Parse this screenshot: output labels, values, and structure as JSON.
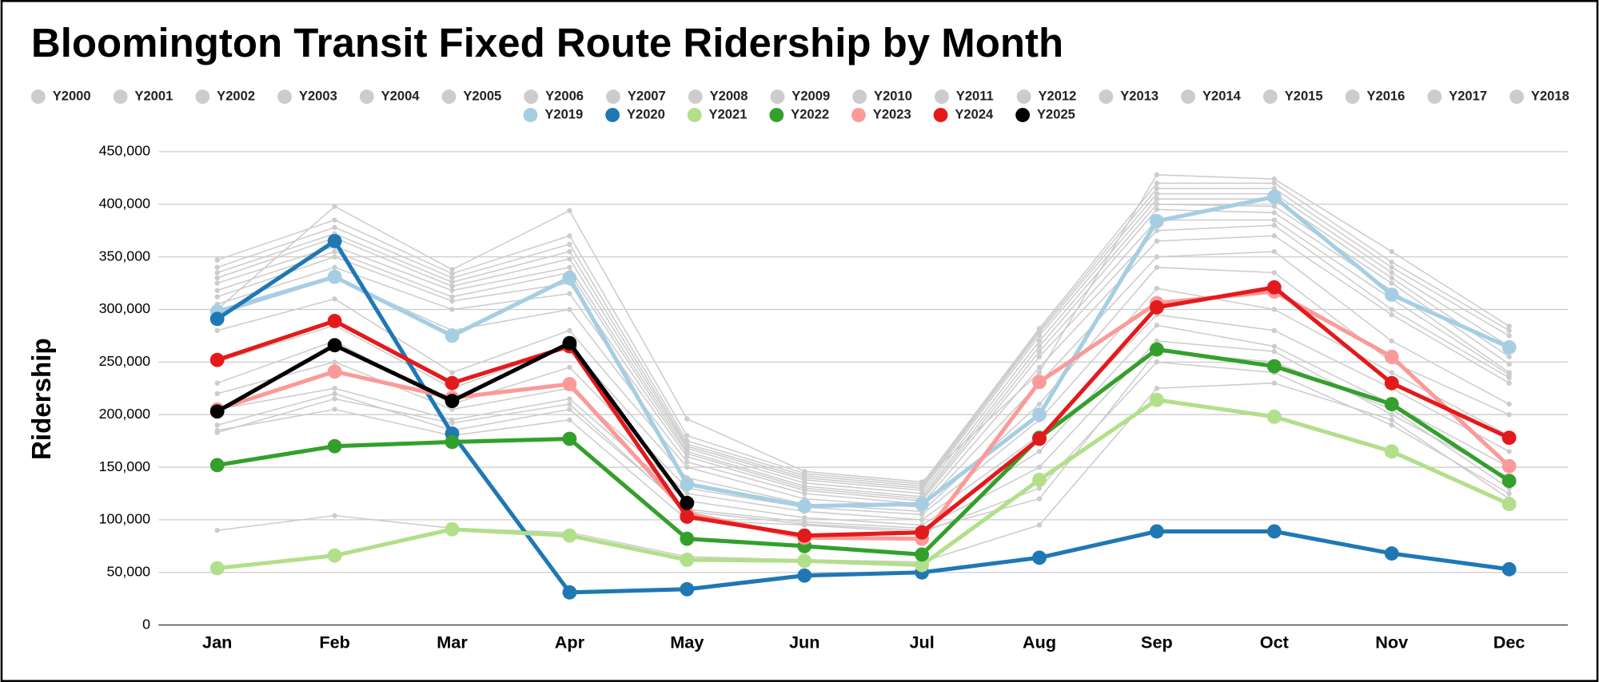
{
  "chart_data": {
    "type": "line",
    "title": "Bloomington Transit Fixed Route Ridership by Month",
    "y_label": "Ridership",
    "categories": [
      "Jan",
      "Feb",
      "Mar",
      "Apr",
      "May",
      "Jun",
      "Jul",
      "Aug",
      "Sep",
      "Oct",
      "Nov",
      "Dec"
    ],
    "ylim": [
      0,
      450000
    ],
    "yticks": [
      0,
      {
        "value": 50000,
        "label": "50,000"
      },
      {
        "value": 100000,
        "label": "100,000"
      },
      {
        "value": 150000,
        "label": "150,000"
      },
      {
        "value": 200000,
        "label": "200,000"
      },
      {
        "value": 250000,
        "label": "250,000"
      },
      {
        "value": 300000,
        "label": "300,000"
      },
      {
        "value": 350000,
        "label": "350,000"
      },
      {
        "value": 400000,
        "label": "400,000"
      },
      {
        "value": 450000,
        "label": "450,000"
      }
    ],
    "grid": true,
    "legend": "top",
    "series": [
      {
        "name": "Y2000",
        "color": "#cccccc",
        "values": [
          90000,
          104000,
          92000,
          88000,
          65000,
          62000,
          60000,
          95000,
          225000,
          230000,
          195000,
          120000
        ]
      },
      {
        "name": "Y2001",
        "color": "#cccccc",
        "values": [
          185000,
          205000,
          180000,
          195000,
          100000,
          95000,
          88000,
          130000,
          250000,
          240000,
          190000,
          125000
        ]
      },
      {
        "name": "Y2002",
        "color": "#cccccc",
        "values": [
          190000,
          220000,
          185000,
          205000,
          110000,
          98000,
          92000,
          150000,
          270000,
          260000,
          200000,
          140000
        ]
      },
      {
        "name": "Y2003",
        "color": "#cccccc",
        "values": [
          205000,
          225000,
          195000,
          215000,
          118000,
          102000,
          95000,
          165000,
          285000,
          265000,
          210000,
          150000
        ]
      },
      {
        "name": "Y2004",
        "color": "#cccccc",
        "values": [
          220000,
          250000,
          205000,
          225000,
          125000,
          108000,
          100000,
          180000,
          295000,
          280000,
          225000,
          165000
        ]
      },
      {
        "name": "Y2005",
        "color": "#cccccc",
        "values": [
          230000,
          270000,
          210000,
          245000,
          130000,
          112000,
          105000,
          195000,
          320000,
          300000,
          240000,
          180000
        ]
      },
      {
        "name": "Y2006",
        "color": "#cccccc",
        "values": [
          250000,
          285000,
          225000,
          265000,
          140000,
          115000,
          108000,
          210000,
          340000,
          335000,
          250000,
          200000
        ]
      },
      {
        "name": "Y2007",
        "color": "#cccccc",
        "values": [
          280000,
          310000,
          240000,
          280000,
          150000,
          120000,
          112000,
          230000,
          350000,
          355000,
          270000,
          210000
        ]
      },
      {
        "name": "Y2008",
        "color": "#cccccc",
        "values": [
          295000,
          330000,
          280000,
          300000,
          155000,
          125000,
          115000,
          245000,
          365000,
          370000,
          295000,
          230000
        ]
      },
      {
        "name": "Y2009",
        "color": "#cccccc",
        "values": [
          305000,
          340000,
          300000,
          315000,
          160000,
          128000,
          118000,
          255000,
          375000,
          380000,
          300000,
          235000
        ]
      },
      {
        "name": "Y2010",
        "color": "#cccccc",
        "values": [
          312000,
          350000,
          308000,
          325000,
          163000,
          130000,
          120000,
          260000,
          385000,
          385000,
          310000,
          238000
        ]
      },
      {
        "name": "Y2011",
        "color": "#cccccc",
        "values": [
          318000,
          355000,
          312000,
          335000,
          165000,
          132000,
          122000,
          265000,
          395000,
          392000,
          318000,
          240000
        ]
      },
      {
        "name": "Y2012",
        "color": "#cccccc",
        "values": [
          325000,
          360000,
          318000,
          340000,
          168000,
          135000,
          125000,
          270000,
          400000,
          398000,
          325000,
          248000
        ]
      },
      {
        "name": "Y2013",
        "color": "#cccccc",
        "values": [
          330000,
          368000,
          322000,
          348000,
          170000,
          138000,
          128000,
          275000,
          405000,
          405000,
          330000,
          255000
        ]
      },
      {
        "name": "Y2014",
        "color": "#cccccc",
        "values": [
          335000,
          372000,
          326000,
          355000,
          172000,
          140000,
          130000,
          278000,
          410000,
          410000,
          335000,
          265000
        ]
      },
      {
        "name": "Y2015",
        "color": "#cccccc",
        "values": [
          340000,
          378000,
          330000,
          362000,
          175000,
          142000,
          132000,
          280000,
          415000,
          415000,
          340000,
          275000
        ]
      },
      {
        "name": "Y2016",
        "color": "#cccccc",
        "values": [
          347000,
          385000,
          334000,
          370000,
          180000,
          144000,
          134000,
          282000,
          420000,
          420000,
          345000,
          280000
        ]
      },
      {
        "name": "Y2017",
        "color": "#cccccc",
        "values": [
          183000,
          215000,
          192000,
          210000,
          108000,
          96000,
          90000,
          120000,
          260000,
          250000,
          205000,
          130000
        ]
      },
      {
        "name": "Y2018",
        "color": "#cccccc",
        "values": [
          300000,
          398000,
          338000,
          394000,
          196000,
          146000,
          136000,
          240000,
          428000,
          424000,
          355000,
          284000
        ]
      },
      {
        "name": "Y2019",
        "color": "#a6cee3",
        "values": [
          298000,
          331000,
          275000,
          330000,
          134000,
          113000,
          115000,
          200000,
          384000,
          407000,
          314000,
          264000
        ]
      },
      {
        "name": "Y2020",
        "color": "#1f78b4",
        "values": [
          291000,
          365000,
          182000,
          31000,
          34000,
          47000,
          50000,
          64000,
          89000,
          89000,
          68000,
          53000
        ]
      },
      {
        "name": "Y2021",
        "color": "#b2df8a",
        "values": [
          54000,
          66000,
          91000,
          85000,
          62000,
          61000,
          57000,
          138000,
          214000,
          198000,
          165000,
          115000
        ]
      },
      {
        "name": "Y2022",
        "color": "#33a02c",
        "values": [
          152000,
          170000,
          174000,
          177000,
          82000,
          75000,
          67000,
          178000,
          262000,
          246000,
          210000,
          137000
        ]
      },
      {
        "name": "Y2023",
        "color": "#fb9a99",
        "values": [
          205000,
          241000,
          216000,
          229000,
          106000,
          83000,
          82000,
          231000,
          306000,
          317000,
          255000,
          151000
        ]
      },
      {
        "name": "Y2024",
        "color": "#e31a1c",
        "values": [
          252000,
          289000,
          230000,
          265000,
          103000,
          85000,
          88000,
          177000,
          302000,
          321000,
          230000,
          178000
        ]
      },
      {
        "name": "Y2025",
        "color": "#000000",
        "values": [
          203000,
          266000,
          213000,
          268000,
          116000,
          null,
          null,
          null,
          null,
          null,
          null,
          null
        ]
      }
    ]
  }
}
